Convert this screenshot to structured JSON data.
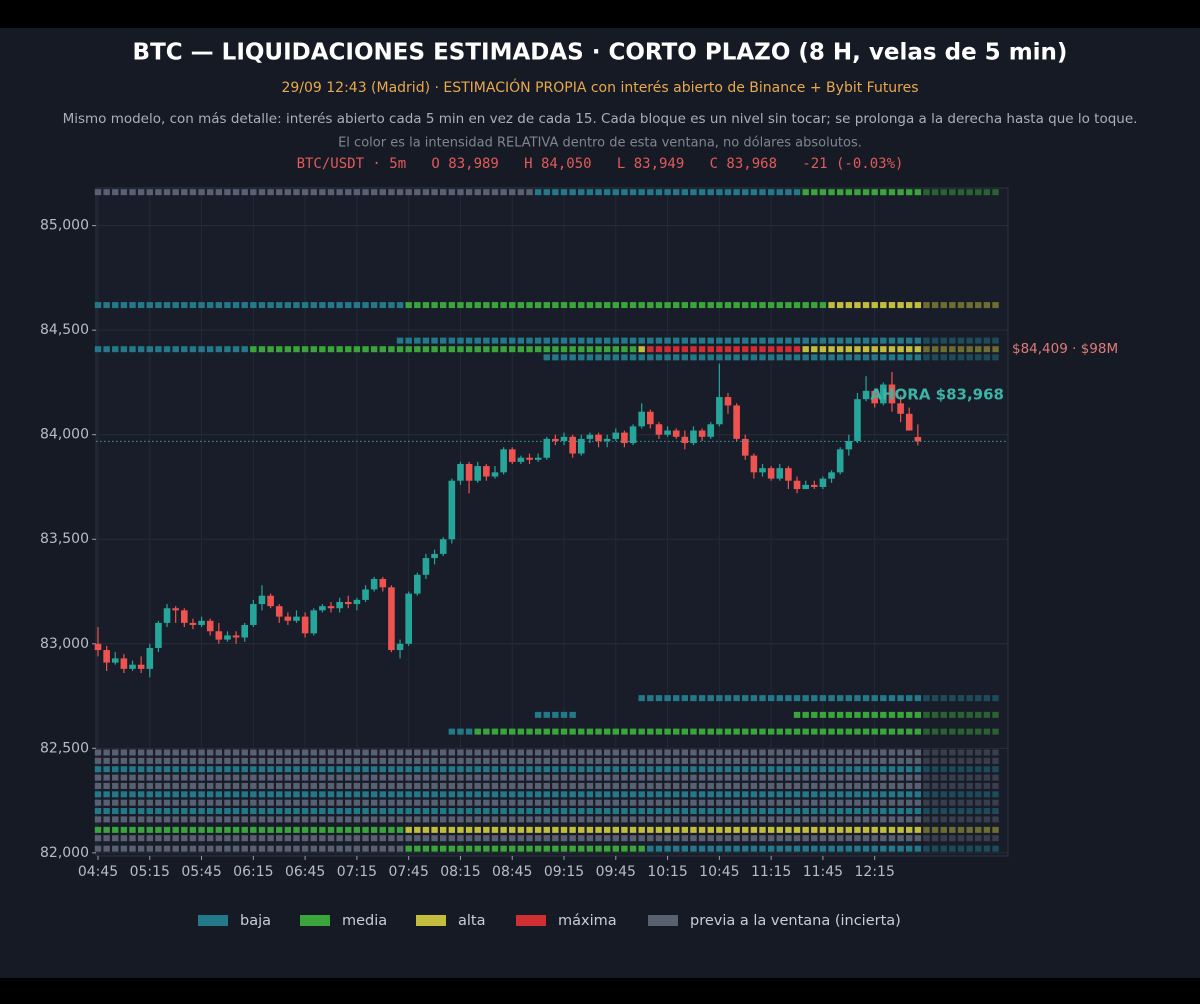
{
  "chart_data": {
    "type": "candlestick",
    "title": "BTC — LIQUIDACIONES ESTIMADAS · CORTO PLAZO (8 H, velas de 5 min)",
    "subtitle": "29/09 12:43 (Madrid)  ·  ESTIMACIÓN PROPIA con interés abierto de Binance + Bybit Futures",
    "description": "Mismo modelo, con más detalle: interés abierto cada 5 min en vez de cada 15. Cada bloque es un nivel sin tocar; se prolonga a la derecha hasta que lo toque.",
    "note": "El color es la intensidad RELATIVA dentro de esta ventana, no dólares absolutos.",
    "ohlc_label": "BTC/USDT · 5m   O 83,989   H 84,050   L 83,949   C 83,968   -21 (-0.03%)",
    "x": [
      "04:45",
      "04:50",
      "04:55",
      "05:00",
      "05:05",
      "05:10",
      "05:15",
      "05:20",
      "05:25",
      "05:30",
      "05:35",
      "05:40",
      "05:45",
      "05:50",
      "05:55",
      "06:00",
      "06:05",
      "06:10",
      "06:15",
      "06:20",
      "06:25",
      "06:30",
      "06:35",
      "06:40",
      "06:45",
      "06:50",
      "06:55",
      "07:00",
      "07:05",
      "07:10",
      "07:15",
      "07:20",
      "07:25",
      "07:30",
      "07:35",
      "07:40",
      "07:45",
      "07:50",
      "07:55",
      "08:00",
      "08:05",
      "08:10",
      "08:15",
      "08:20",
      "08:25",
      "08:30",
      "08:35",
      "08:40",
      "08:45",
      "08:50",
      "08:55",
      "09:00",
      "09:05",
      "09:10",
      "09:15",
      "09:20",
      "09:25",
      "09:30",
      "09:35",
      "09:40",
      "09:45",
      "09:50",
      "09:55",
      "10:00",
      "10:05",
      "10:10",
      "10:15",
      "10:20",
      "10:25",
      "10:30",
      "10:35",
      "10:40",
      "10:45",
      "10:50",
      "10:55",
      "11:00",
      "11:05",
      "11:10",
      "11:15",
      "11:20",
      "11:25",
      "11:30",
      "11:35",
      "11:40",
      "11:45",
      "11:50",
      "11:55",
      "12:00",
      "12:05",
      "12:10",
      "12:15",
      "12:20",
      "12:25",
      "12:30",
      "12:35",
      "12:40"
    ],
    "open": [
      83000,
      82970,
      82910,
      82930,
      82880,
      82900,
      82880,
      82980,
      83100,
      83170,
      83160,
      83100,
      83090,
      83110,
      83060,
      83020,
      83040,
      83030,
      83090,
      83190,
      83230,
      83180,
      83130,
      83110,
      83130,
      83050,
      83160,
      83180,
      83170,
      83200,
      83190,
      83210,
      83260,
      83310,
      83270,
      82970,
      83000,
      83240,
      83330,
      83410,
      83430,
      83500,
      83780,
      83860,
      83780,
      83850,
      83800,
      83820,
      83930,
      83870,
      83890,
      83880,
      83890,
      83980,
      83970,
      83990,
      83910,
      83980,
      84000,
      83970,
      83980,
      84010,
      83960,
      84040,
      84110,
      84050,
      84000,
      84020,
      83990,
      83960,
      84020,
      83990,
      84050,
      84180,
      84140,
      83980,
      83900,
      83820,
      83840,
      83790,
      83840,
      83780,
      83740,
      83760,
      83750,
      83790,
      83820,
      83930,
      83970,
      84170,
      84210,
      84150,
      84240,
      84150,
      84100,
      83989
    ],
    "high": [
      83080,
      82990,
      82960,
      82950,
      82920,
      82940,
      83000,
      83110,
      83190,
      83180,
      83170,
      83120,
      83130,
      83120,
      83100,
      83060,
      83060,
      83100,
      83210,
      83280,
      83240,
      83190,
      83150,
      83160,
      83150,
      83170,
      83190,
      83200,
      83220,
      83230,
      83220,
      83280,
      83320,
      83320,
      83280,
      83020,
      83250,
      83340,
      83430,
      83450,
      83510,
      83790,
      83870,
      83870,
      83870,
      83860,
      83850,
      83940,
      83940,
      83900,
      83910,
      83910,
      83990,
      84000,
      84010,
      84000,
      84000,
      84010,
      84010,
      84000,
      84030,
      84020,
      84050,
      84150,
      84120,
      84060,
      84040,
      84030,
      84020,
      84040,
      84030,
      84060,
      84340,
      84200,
      84150,
      84000,
      83910,
      83860,
      83850,
      83860,
      83850,
      83800,
      83780,
      83780,
      83800,
      83830,
      83940,
      84000,
      84200,
      84280,
      84220,
      84250,
      84300,
      84190,
      84130,
      84050
    ],
    "low": [
      82940,
      82870,
      82900,
      82860,
      82870,
      82860,
      82840,
      82960,
      83080,
      83100,
      83080,
      83070,
      83080,
      83040,
      83000,
      83010,
      83000,
      83010,
      83080,
      83160,
      83170,
      83100,
      83090,
      83100,
      83030,
      83040,
      83150,
      83150,
      83150,
      83170,
      83160,
      83200,
      83250,
      83250,
      82960,
      82930,
      82990,
      83230,
      83310,
      83380,
      83420,
      83480,
      83760,
      83720,
      83770,
      83780,
      83790,
      83810,
      83860,
      83860,
      83860,
      83870,
      83880,
      83950,
      83950,
      83890,
      83900,
      83960,
      83940,
      83940,
      83970,
      83940,
      83950,
      84030,
      84030,
      83980,
      83990,
      83980,
      83930,
      83950,
      83970,
      83980,
      84040,
      84100,
      83970,
      83880,
      83790,
      83800,
      83780,
      83780,
      83740,
      83720,
      83740,
      83740,
      83740,
      83770,
      83810,
      83900,
      83960,
      84160,
      84130,
      84140,
      84110,
      84060,
      84020,
      83949
    ],
    "close": [
      82970,
      82910,
      82930,
      82880,
      82900,
      82880,
      82980,
      83100,
      83170,
      83160,
      83100,
      83090,
      83110,
      83060,
      83020,
      83040,
      83030,
      83090,
      83190,
      83230,
      83180,
      83130,
      83110,
      83130,
      83050,
      83160,
      83180,
      83170,
      83200,
      83190,
      83210,
      83260,
      83310,
      83270,
      82970,
      83000,
      83240,
      83330,
      83410,
      83430,
      83500,
      83780,
      83860,
      83780,
      83850,
      83800,
      83820,
      83930,
      83870,
      83890,
      83880,
      83890,
      83980,
      83970,
      83990,
      83910,
      83980,
      84000,
      83970,
      83980,
      84010,
      83960,
      84040,
      84110,
      84050,
      84000,
      84020,
      83990,
      83960,
      84020,
      83990,
      84050,
      84180,
      84140,
      83980,
      83900,
      83820,
      83840,
      83790,
      83840,
      83780,
      83740,
      83760,
      83750,
      83790,
      83820,
      83930,
      83970,
      84170,
      84210,
      84150,
      84240,
      84150,
      84100,
      84020,
      83968
    ],
    "up_color": "#26a69a",
    "down_color": "#ef5350",
    "ylim": [
      81985,
      85180
    ],
    "yticks": [
      {
        "value": 82000,
        "label": "82,000"
      },
      {
        "value": 82500,
        "label": "82,500"
      },
      {
        "value": 83000,
        "label": "83,000"
      },
      {
        "value": 83500,
        "label": "83,500"
      },
      {
        "value": 84000,
        "label": "84,000"
      },
      {
        "value": 84500,
        "label": "84,500"
      },
      {
        "value": 85000,
        "label": "85,000"
      }
    ],
    "grid": true,
    "intensity_scale": [
      {
        "name": "baja",
        "color": "#23798a"
      },
      {
        "name": "media",
        "color": "#39a53a"
      },
      {
        "name": "alta",
        "color": "#c2bd3c"
      },
      {
        "name": "máxima",
        "color": "#cf2f33"
      },
      {
        "name": "previa a la ventana (incierta)",
        "color": "#596072"
      }
    ],
    "levels": [
      {
        "price": 85160,
        "segments": [
          {
            "from": "04:45",
            "to": "08:55",
            "intensity": "previa a la ventana (incierta)"
          },
          {
            "from": "09:00",
            "to": "11:30",
            "intensity": "baja"
          },
          {
            "from": "11:35",
            "to": "12:40",
            "intensity": "media"
          }
        ]
      },
      {
        "price": 84620,
        "segments": [
          {
            "from": "04:45",
            "to": "07:40",
            "intensity": "baja"
          },
          {
            "from": "07:45",
            "to": "11:45",
            "intensity": "media"
          },
          {
            "from": "11:50",
            "to": "12:40",
            "intensity": "alta"
          }
        ]
      },
      {
        "price": 84450,
        "segments": [
          {
            "from": "07:40",
            "to": "12:40",
            "intensity": "baja"
          }
        ]
      },
      {
        "price": 84409,
        "segments": [
          {
            "from": "04:45",
            "to": "06:10",
            "intensity": "baja"
          },
          {
            "from": "06:15",
            "to": "09:55",
            "intensity": "media"
          },
          {
            "from": "10:00",
            "to": "10:00",
            "intensity": "alta"
          },
          {
            "from": "10:05",
            "to": "11:30",
            "intensity": "máxima"
          },
          {
            "from": "11:35",
            "to": "12:40",
            "intensity": "alta"
          }
        ]
      },
      {
        "price": 84370,
        "segments": [
          {
            "from": "09:05",
            "to": "12:40",
            "intensity": "baja"
          }
        ]
      },
      {
        "price": 82740,
        "segments": [
          {
            "from": "10:00",
            "to": "12:40",
            "intensity": "baja"
          }
        ]
      },
      {
        "price": 82660,
        "segments": [
          {
            "from": "09:00",
            "to": "09:20",
            "intensity": "baja"
          },
          {
            "from": "11:30",
            "to": "12:40",
            "intensity": "media"
          }
        ]
      },
      {
        "price": 82580,
        "segments": [
          {
            "from": "08:10",
            "to": "08:20",
            "intensity": "baja"
          },
          {
            "from": "08:25",
            "to": "12:40",
            "intensity": "media"
          }
        ]
      },
      {
        "price": 82480,
        "segments": [
          {
            "from": "04:45",
            "to": "12:40",
            "intensity": "previa a la ventana (incierta)"
          }
        ]
      },
      {
        "price": 82440,
        "segments": [
          {
            "from": "04:45",
            "to": "12:40",
            "intensity": "previa a la ventana (incierta)"
          }
        ]
      },
      {
        "price": 82400,
        "segments": [
          {
            "from": "04:45",
            "to": "12:40",
            "intensity": "baja"
          }
        ]
      },
      {
        "price": 82360,
        "segments": [
          {
            "from": "04:45",
            "to": "12:40",
            "intensity": "previa a la ventana (incierta)"
          }
        ]
      },
      {
        "price": 82320,
        "segments": [
          {
            "from": "04:45",
            "to": "12:40",
            "intensity": "previa a la ventana (incierta)"
          }
        ]
      },
      {
        "price": 82280,
        "segments": [
          {
            "from": "04:45",
            "to": "12:40",
            "intensity": "baja"
          }
        ]
      },
      {
        "price": 82240,
        "segments": [
          {
            "from": "04:45",
            "to": "12:40",
            "intensity": "previa a la ventana (incierta)"
          }
        ]
      },
      {
        "price": 82200,
        "segments": [
          {
            "from": "04:45",
            "to": "12:40",
            "intensity": "baja"
          }
        ]
      },
      {
        "price": 82160,
        "segments": [
          {
            "from": "04:45",
            "to": "12:40",
            "intensity": "previa a la ventana (incierta)"
          }
        ]
      },
      {
        "price": 82110,
        "segments": [
          {
            "from": "04:45",
            "to": "07:40",
            "intensity": "media"
          },
          {
            "from": "07:45",
            "to": "12:40",
            "intensity": "alta"
          }
        ]
      },
      {
        "price": 82070,
        "segments": [
          {
            "from": "04:45",
            "to": "12:40",
            "intensity": "previa a la ventana (incierta)"
          }
        ]
      },
      {
        "price": 82020,
        "segments": [
          {
            "from": "04:45",
            "to": "07:40",
            "intensity": "previa a la ventana (incierta)"
          },
          {
            "from": "07:45",
            "to": "10:00",
            "intensity": "media"
          },
          {
            "from": "10:05",
            "to": "12:40",
            "intensity": "baja"
          }
        ]
      }
    ],
    "level_note": {
      "price": 84409,
      "label": "$84,409 · $98M"
    },
    "current_price": 83968,
    "current_price_label": "AHORA $83,968"
  }
}
